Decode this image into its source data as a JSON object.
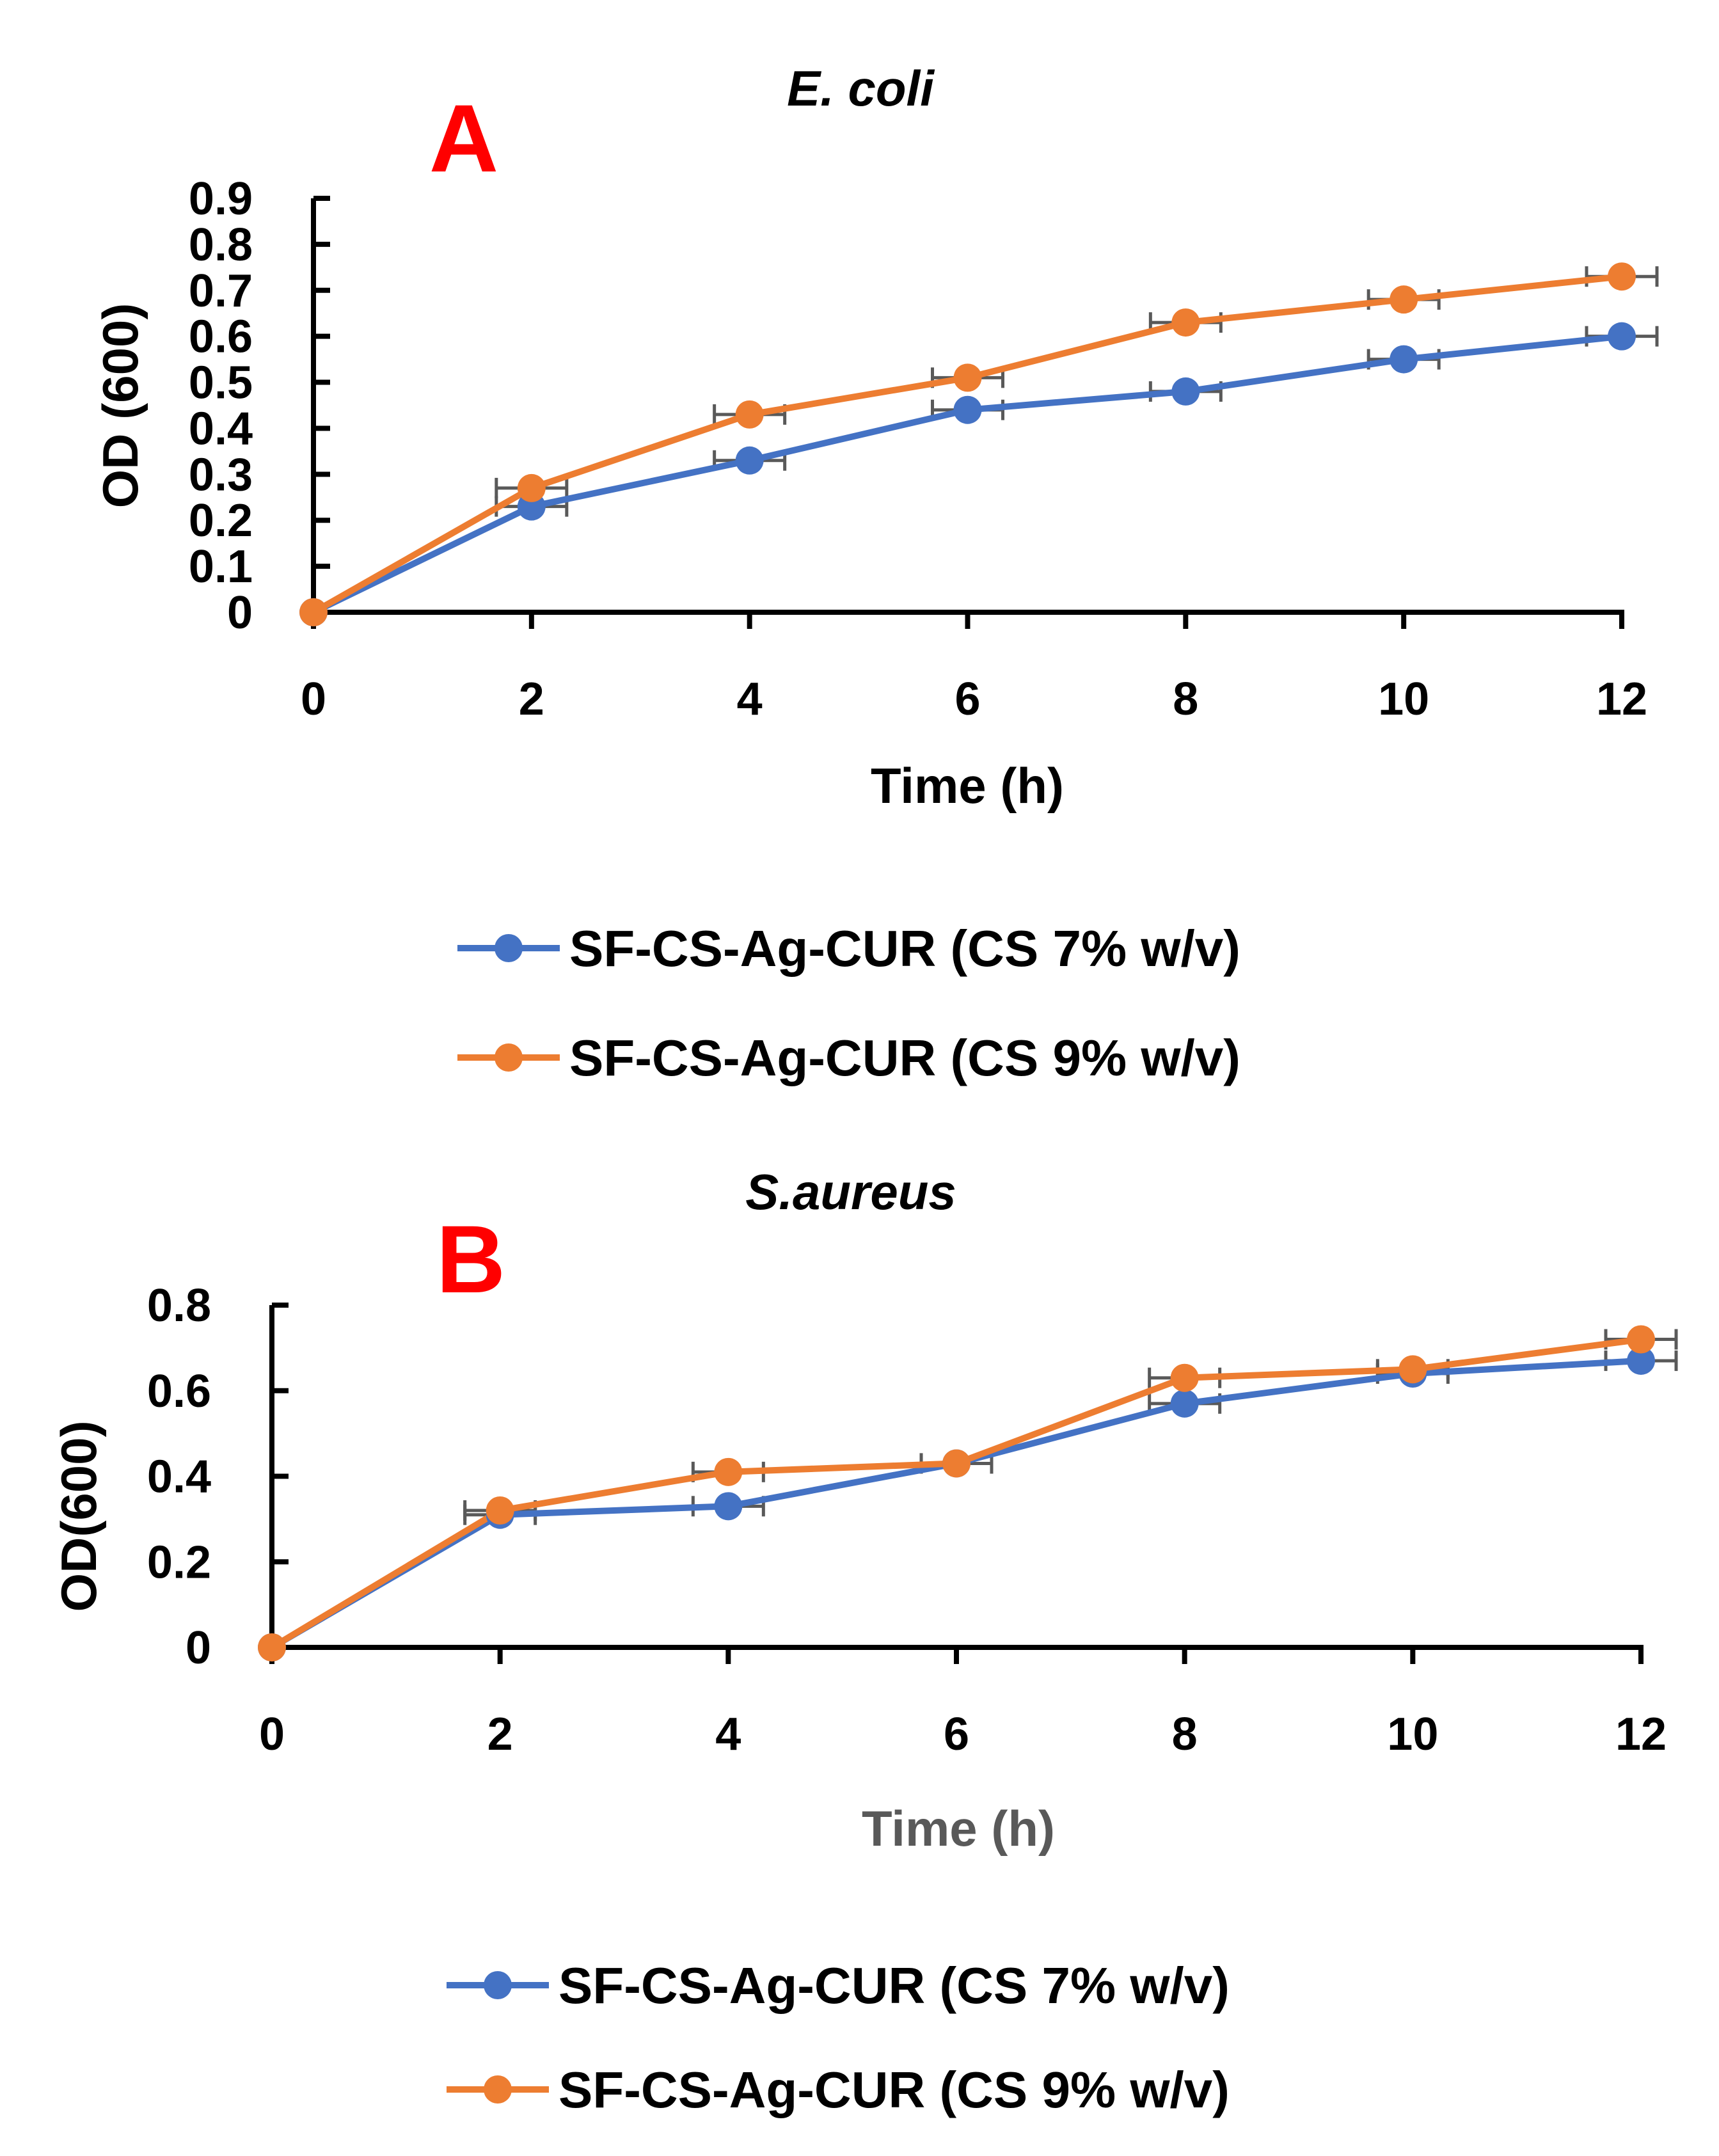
{
  "colors": {
    "series_7": "#4472c4",
    "series_9": "#ed7d31",
    "panel_label": "#ff0000",
    "error_bar": "#595959"
  },
  "chart_data": [
    {
      "type": "line",
      "panel_label": "A",
      "title": "E. coli",
      "xlabel": "Time (h)",
      "ylabel": "OD (600)",
      "x": [
        0,
        2,
        4,
        6,
        8,
        10,
        12
      ],
      "x_ticks": [
        "0",
        "2",
        "4",
        "6",
        "8",
        "10",
        "12"
      ],
      "y_ticks": [
        "0",
        "0.1",
        "0.2",
        "0.3",
        "0.4",
        "0.5",
        "0.6",
        "0.7",
        "0.8",
        "0.9"
      ],
      "xlim": [
        0,
        12
      ],
      "ylim": [
        0,
        0.9
      ],
      "legend_position": "bottom",
      "series": [
        {
          "name": "SF-CS-Ag-CUR (CS 7% w/v)",
          "color": "#4472c4",
          "values": [
            0,
            0.23,
            0.33,
            0.44,
            0.48,
            0.55,
            0.6
          ]
        },
        {
          "name": "SF-CS-Ag-CUR (CS 9% w/v)",
          "color": "#ed7d31",
          "values": [
            0,
            0.27,
            0.43,
            0.51,
            0.63,
            0.68,
            0.73
          ]
        }
      ]
    },
    {
      "type": "line",
      "panel_label": "B",
      "title": "S.aureus",
      "xlabel": "Time (h)",
      "ylabel": "OD(600)",
      "x": [
        0,
        2,
        4,
        6,
        8,
        10,
        12
      ],
      "x_ticks": [
        "0",
        "2",
        "4",
        "6",
        "8",
        "10",
        "12"
      ],
      "y_ticks": [
        "0",
        "0.2",
        "0.4",
        "0.6",
        "0.8"
      ],
      "xlim": [
        0,
        12
      ],
      "ylim": [
        0,
        0.8
      ],
      "legend_position": "bottom",
      "series": [
        {
          "name": "SF-CS-Ag-CUR (CS 7% w/v)",
          "color": "#4472c4",
          "values": [
            0,
            0.31,
            0.33,
            0.43,
            0.57,
            0.64,
            0.67
          ]
        },
        {
          "name": "SF-CS-Ag-CUR (CS 9% w/v)",
          "color": "#ed7d31",
          "values": [
            0,
            0.32,
            0.41,
            0.43,
            0.63,
            0.65,
            0.72
          ]
        }
      ]
    }
  ]
}
